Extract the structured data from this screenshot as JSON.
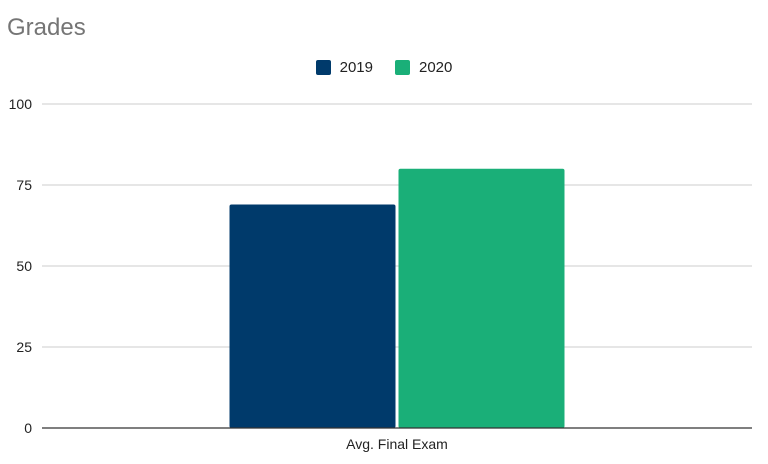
{
  "chart_data": {
    "type": "bar",
    "title": "Grades",
    "xlabel": "",
    "ylabel": "",
    "categories": [
      "Avg. Final Exam"
    ],
    "series": [
      {
        "name": "2019",
        "values": [
          69
        ],
        "color": "#003a6b"
      },
      {
        "name": "2020",
        "values": [
          80
        ],
        "color": "#1aaf78"
      }
    ],
    "ylim": [
      0,
      100
    ],
    "yticks": [
      0,
      25,
      50,
      75,
      100
    ],
    "grid": true,
    "legend_position": "top"
  }
}
